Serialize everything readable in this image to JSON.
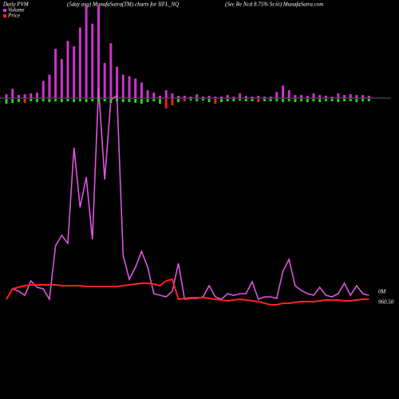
{
  "chart_data": {
    "type": "bar-line",
    "title": "Daily PVM",
    "subtitle": "(5day avg) MunafaSutra(TM) charts for IIFL_NQ",
    "source": "(Sec Re   Ncd 8.75% Sr.iii) MunafaSutra.com",
    "ylim": [
      0,
      320
    ],
    "bar_ylim": [
      0,
      120
    ],
    "series": [
      {
        "name": "Volume",
        "color": "#cc33cc",
        "end_label": "0M",
        "bar_values": [
          5,
          12,
          4,
          5,
          6,
          7,
          22,
          30,
          63,
          50,
          73,
          66,
          90,
          118,
          95,
          118,
          45,
          70,
          40,
          30,
          28,
          25,
          20,
          10,
          7,
          3,
          10,
          6,
          3,
          3,
          2,
          5,
          2,
          3,
          2,
          2,
          4,
          2,
          6,
          3,
          2,
          3,
          2,
          2,
          8,
          16,
          10,
          4,
          4,
          3,
          6,
          4,
          3,
          2,
          6,
          4,
          5,
          4,
          4,
          3
        ],
        "values": [
          45,
          58,
          55,
          50,
          68,
          60,
          58,
          45,
          112,
          125,
          115,
          235,
          160,
          198,
          120,
          310,
          195,
          295,
          300,
          100,
          70,
          85,
          105,
          85,
          52,
          50,
          48,
          55,
          90,
          45,
          46,
          46,
          48,
          62,
          48,
          45,
          52,
          50,
          52,
          52,
          67,
          45,
          48,
          48,
          46,
          80,
          95,
          62,
          56,
          52,
          50,
          60,
          50,
          48,
          52,
          65,
          50,
          62,
          52,
          50
        ]
      },
      {
        "name": "Price",
        "color": "#ff2222",
        "end_label": "960.50",
        "bar_values": [
          6,
          5,
          4,
          5,
          3,
          4,
          3,
          4,
          3,
          4,
          3,
          4,
          3,
          4,
          3,
          4,
          3,
          5,
          3,
          4,
          4,
          5,
          6,
          4,
          3,
          6,
          12,
          8,
          4,
          3,
          2,
          3,
          2,
          4,
          6,
          4,
          3,
          3,
          2,
          3,
          3,
          4,
          3,
          3,
          3,
          4,
          3,
          4,
          3,
          4,
          3,
          4,
          3,
          3,
          4,
          3,
          3,
          4,
          3,
          3
        ],
        "bar_colors": [
          "#33cc33",
          "#33cc33",
          "#33cc33",
          "#ee2222",
          "#33cc33",
          "#33cc33",
          "#33cc33",
          "#33cc33",
          "#33cc33",
          "#33cc33",
          "#33cc33",
          "#33cc33",
          "#33cc33",
          "#33cc33",
          "#33cc33",
          "#33cc33",
          "#33cc33",
          "#33cc33",
          "#33cc33",
          "#33cc33",
          "#33cc33",
          "#33cc33",
          "#33cc33",
          "#33cc33",
          "#33cc33",
          "#33cc33",
          "#ee2222",
          "#ee2222",
          "#33cc33",
          "#ee2222",
          "#33cc33",
          "#33cc33",
          "#33cc33",
          "#33cc33",
          "#ee2222",
          "#33cc33",
          "#33cc33",
          "#33cc33",
          "#33cc33",
          "#33cc33",
          "#33cc33",
          "#ee2222",
          "#33cc33",
          "#33cc33",
          "#33cc33",
          "#33cc33",
          "#33cc33",
          "#33cc33",
          "#33cc33",
          "#33cc33",
          "#33cc33",
          "#33cc33",
          "#33cc33",
          "#33cc33",
          "#33cc33",
          "#33cc33",
          "#33cc33",
          "#33cc33",
          "#33cc33",
          "#33cc33"
        ],
        "values": [
          45,
          58,
          60,
          62,
          63,
          63,
          63,
          63,
          63,
          62,
          62,
          62,
          62,
          61,
          61,
          61,
          61,
          61,
          61,
          62,
          63,
          64,
          65,
          65,
          64,
          62,
          68,
          70,
          45,
          46,
          47,
          47,
          47,
          46,
          45,
          44,
          43,
          44,
          45,
          44,
          43,
          42,
          40,
          38,
          38,
          40,
          40,
          41,
          42,
          42,
          42,
          43,
          44,
          44,
          44,
          43,
          43,
          44,
          45,
          45
        ]
      }
    ]
  }
}
